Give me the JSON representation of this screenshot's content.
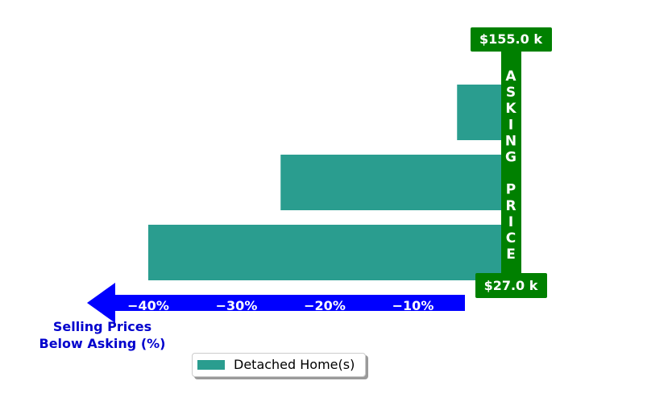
{
  "chart_data": {
    "type": "bar",
    "orientation": "horizontal",
    "categories": [
      "",
      "",
      ""
    ],
    "series": [
      {
        "name": "Detached Home(s)",
        "values": [
          -5,
          -25,
          -40
        ],
        "color": "#2a9d8f"
      }
    ],
    "xlim": [
      -50,
      0
    ],
    "xticks": [
      -40,
      -30,
      -20,
      -10
    ],
    "xtick_labels": [
      "−40%",
      "−30%",
      "−20%",
      "−10%"
    ],
    "xlabel": "Selling Prices\nBelow Asking (%)",
    "ylabel": "",
    "title": "",
    "grid": false,
    "legend_position": "bottom-center",
    "asking_price_label": "ASKING PRICE",
    "price_max_label": "$155.0 k",
    "price_min_label": "$27.0 k"
  },
  "colors": {
    "bar": "#2a9d8f",
    "asking_bar": "#008000",
    "arrow": "#0000ff",
    "axis_label": "#0000cd",
    "tick_text": "#ffffff"
  }
}
